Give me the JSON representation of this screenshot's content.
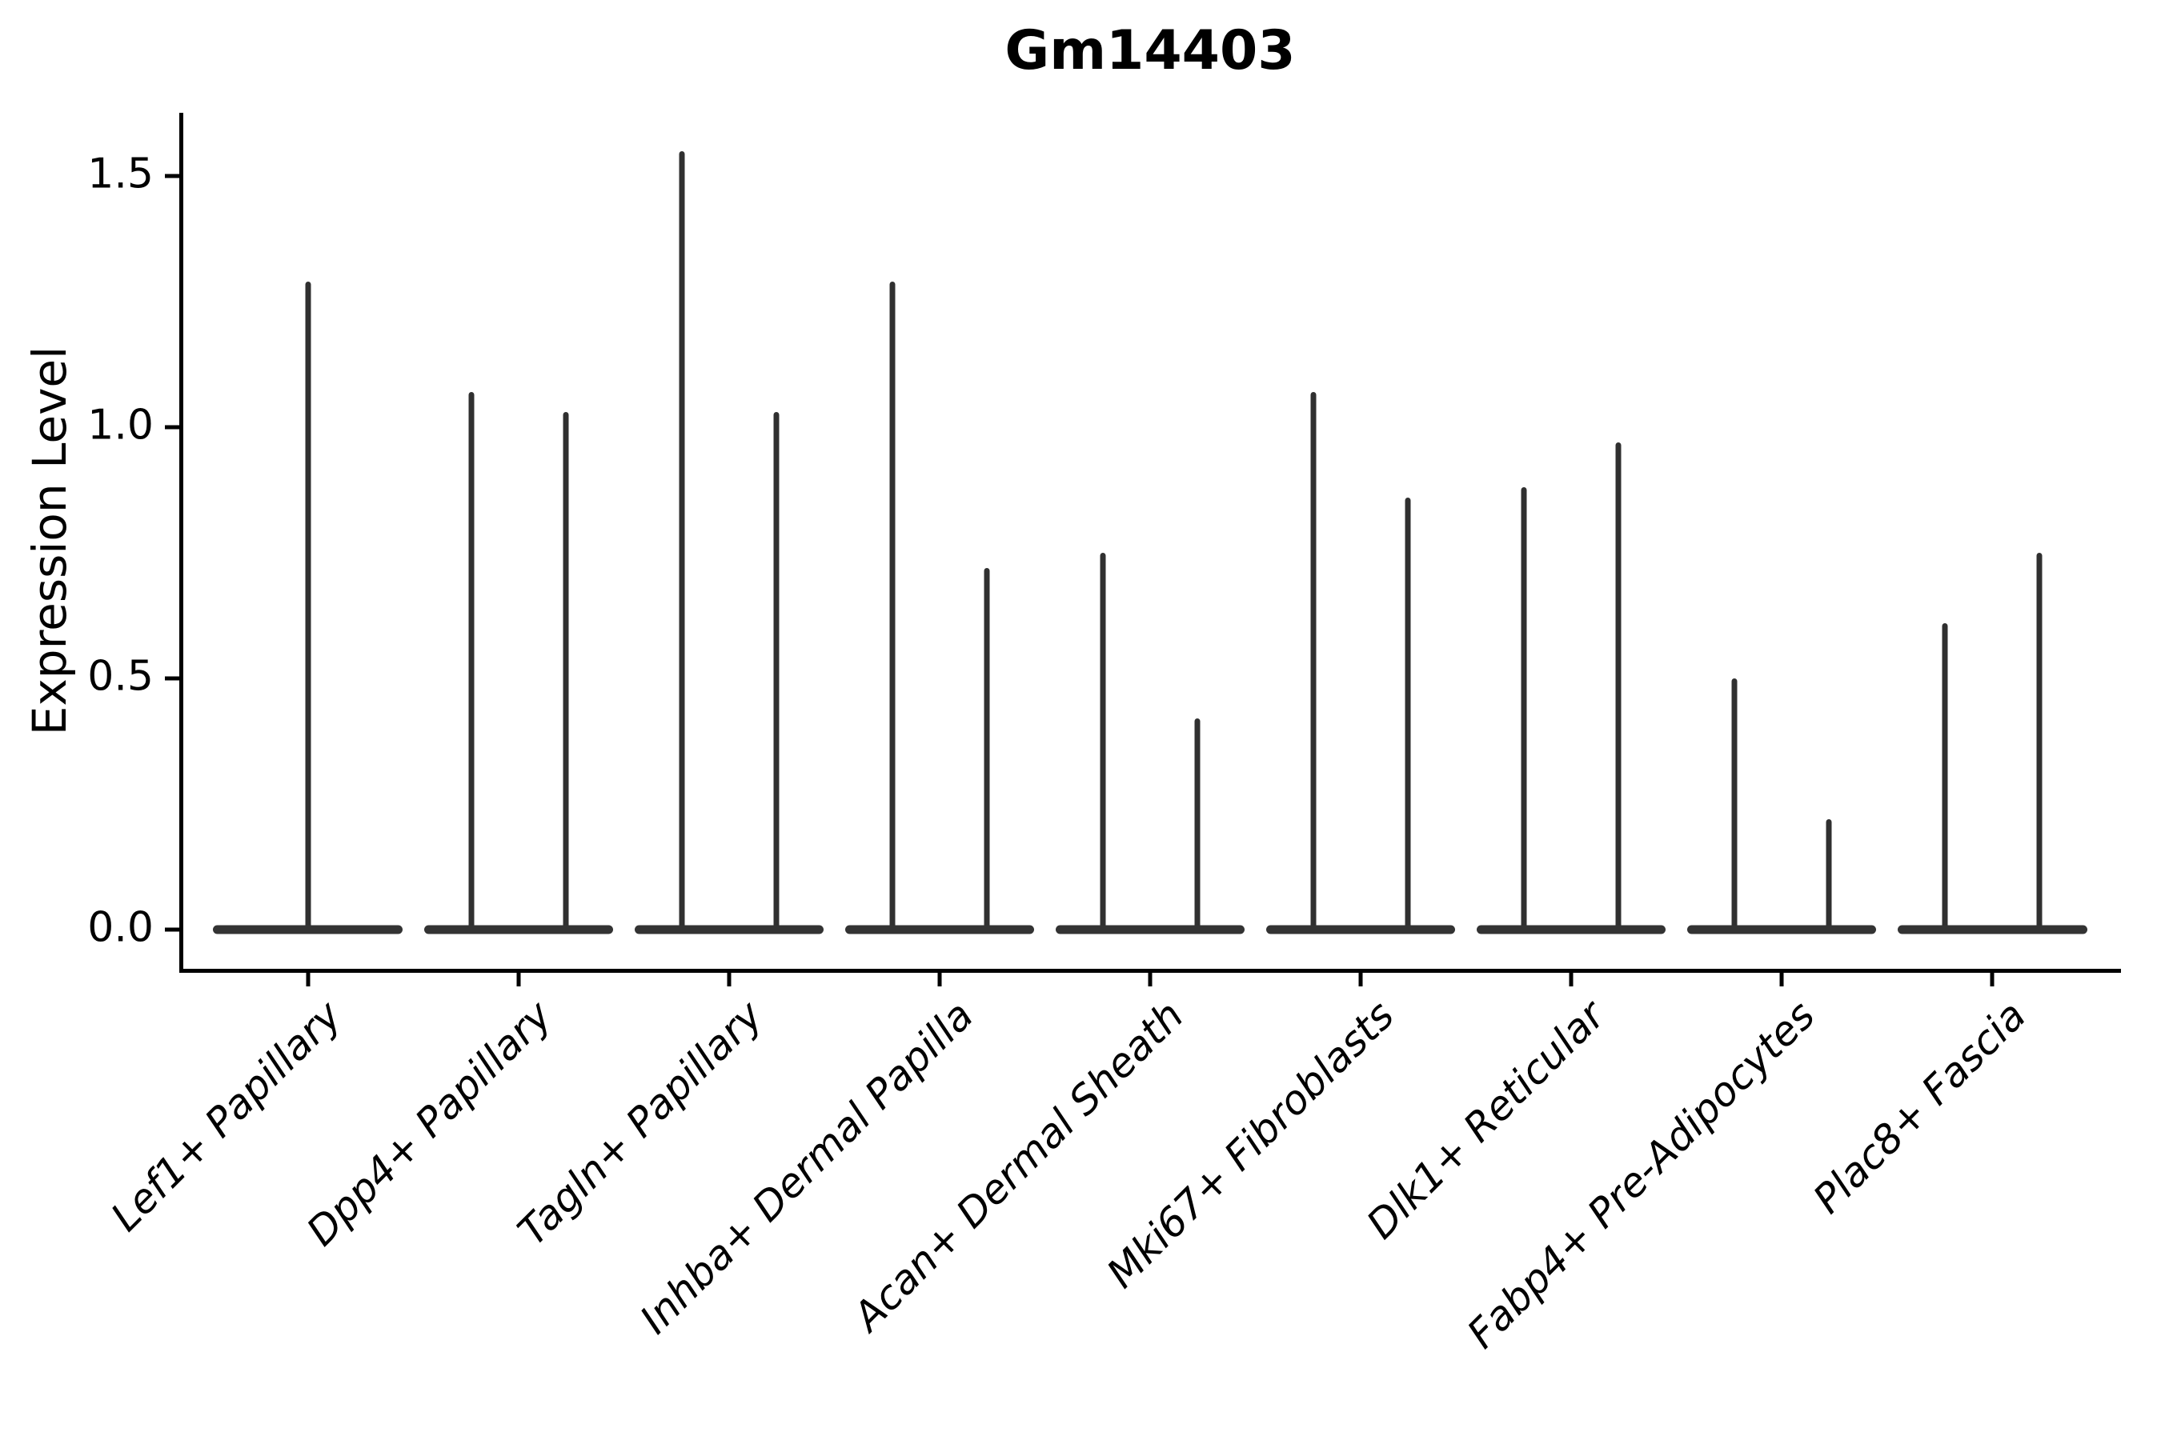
{
  "chart_data": {
    "type": "violin",
    "title": "Gm14403",
    "xlabel": "",
    "ylabel": "Expression Level",
    "y_tick_labels": [
      "0.0",
      "0.5",
      "1.0",
      "1.5"
    ],
    "y_tick_values": [
      0.0,
      0.5,
      1.0,
      1.5
    ],
    "ylim": [
      -0.08,
      1.63
    ],
    "grid": false,
    "legend": "none",
    "x_tick_rotation_deg": 45,
    "baseline_value": 0.0,
    "violin_color": "#303030",
    "base_color": "#333333",
    "axis_color": "#000000",
    "categories": [
      "Lef1+ Papillary",
      "Dpp4+ Papillary",
      "Tagln+ Papillary",
      "Inhba+ Dermal Papilla",
      "Acan+ Dermal Sheath",
      "Mki67+ Fibroblasts",
      "Dlk1+ Reticular",
      "Fabp4+ Pre-Adipocytes",
      "Plac8+ Fascia"
    ],
    "series": [
      {
        "category": "Lef1+ Papillary",
        "violin_peaks": [
          1.29
        ]
      },
      {
        "category": "Dpp4+ Papillary",
        "violin_peaks": [
          1.07,
          1.03
        ]
      },
      {
        "category": "Tagln+ Papillary",
        "violin_peaks": [
          1.55,
          1.03
        ]
      },
      {
        "category": "Inhba+ Dermal Papilla",
        "violin_peaks": [
          1.29,
          0.72
        ]
      },
      {
        "category": "Acan+ Dermal Sheath",
        "violin_peaks": [
          0.75,
          0.42
        ]
      },
      {
        "category": "Mki67+ Fibroblasts",
        "violin_peaks": [
          1.07,
          0.86
        ]
      },
      {
        "category": "Dlk1+ Reticular",
        "violin_peaks": [
          0.88,
          0.97
        ]
      },
      {
        "category": "Fabp4+ Pre-Adipocytes",
        "violin_peaks": [
          0.5,
          0.22
        ]
      },
      {
        "category": "Plac8+ Fascia",
        "violin_peaks": [
          0.61,
          0.75
        ]
      }
    ]
  }
}
